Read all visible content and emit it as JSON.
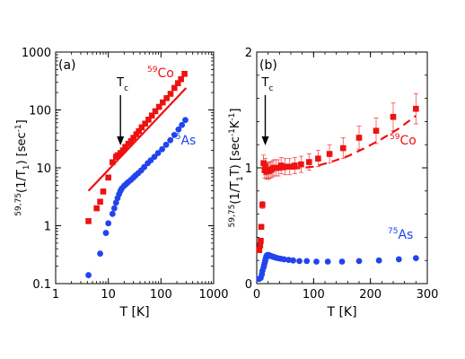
{
  "chart_data": [
    {
      "panel": "(a)",
      "type": "scatter",
      "xscale": "log",
      "yscale": "log",
      "xlim": [
        1,
        1000
      ],
      "ylim": [
        0.1,
        1000
      ],
      "xticks": [
        "1",
        "10",
        "100",
        "1000"
      ],
      "yticks": [
        "0.1",
        "1",
        "10",
        "100",
        "1000"
      ],
      "xlabel": "T [K]",
      "ylabel": "59,75(1/T1) [sec-1]",
      "ylabel_parts": {
        "pre": "59,75",
        "main": "(1/T",
        "sub": "1",
        "mid": ") [sec",
        "sup": "-1",
        "post": "]"
      },
      "annotation": {
        "text": "T",
        "sub": "c",
        "x": 17
      },
      "series": [
        {
          "name": "59Co",
          "label": {
            "sup": "59",
            "text": "Co"
          },
          "color": "#ee1111",
          "marker": "square",
          "x": [
            4.2,
            6,
            7,
            8,
            10,
            12,
            14,
            15,
            17,
            19,
            21,
            24,
            27,
            30,
            34,
            38,
            43,
            50,
            58,
            67,
            78,
            92,
            108,
            128,
            152,
            180,
            210,
            240,
            280
          ],
          "y": [
            1.2,
            2.0,
            2.6,
            3.9,
            6.8,
            12.5,
            15.5,
            16.5,
            18,
            20,
            23,
            26,
            29,
            33,
            38,
            43,
            50,
            58,
            68,
            80,
            95,
            113,
            135,
            160,
            190,
            240,
            290,
            340,
            420
          ]
        },
        {
          "name": "75As",
          "label": {
            "sup": "75",
            "text": "As"
          },
          "color": "#2244ee",
          "marker": "circle",
          "x": [
            4.2,
            7,
            9,
            10,
            12,
            13,
            14,
            15,
            16,
            17,
            18,
            20,
            22,
            24,
            27,
            30,
            33,
            37,
            42,
            48,
            56,
            64,
            75,
            88,
            105,
            125,
            150,
            180,
            215,
            250,
            290
          ],
          "y": [
            0.14,
            0.33,
            0.75,
            1.1,
            1.6,
            2.0,
            2.5,
            3.0,
            3.5,
            4.0,
            4.4,
            4.9,
            5.3,
            5.7,
            6.2,
            6.8,
            7.4,
            8.1,
            9.0,
            10.3,
            12,
            13.5,
            15.5,
            18,
            21,
            25,
            30,
            37,
            46,
            55,
            67
          ]
        },
        {
          "name": "fit",
          "type": "line",
          "color": "#ee1111",
          "x": [
            4.2,
            300
          ],
          "y": [
            4.0,
            240
          ]
        }
      ]
    },
    {
      "panel": "(b)",
      "type": "scatter",
      "xlim": [
        0,
        300
      ],
      "ylim": [
        0,
        2
      ],
      "xticks": [
        "0",
        "100",
        "200",
        "300"
      ],
      "yticks": [
        "0",
        "1",
        "2"
      ],
      "xlabel": "T [K]",
      "ylabel": "59,75(1/T1T) [sec-1K-1]",
      "ylabel_parts": {
        "pre": "59,75",
        "main": "(1/T",
        "sub": "1",
        "mid": "T) [sec",
        "sup": "-1",
        "mid2": "K",
        "sup2": "-1",
        "post": "]"
      },
      "annotation": {
        "text": "T",
        "sub": "c",
        "x": 15
      },
      "series": [
        {
          "name": "59Co",
          "label": {
            "sup": "59",
            "text": "Co"
          },
          "color": "#ee1111",
          "marker": "square",
          "x": [
            4.2,
            6,
            7,
            8,
            10,
            12,
            14,
            15,
            17,
            19,
            21,
            24,
            27,
            30,
            34,
            38,
            43,
            50,
            58,
            67,
            78,
            92,
            108,
            128,
            152,
            180,
            210,
            240,
            280
          ],
          "y": [
            0.29,
            0.33,
            0.37,
            0.49,
            0.68,
            1.04,
            0.98,
            1.01,
            0.97,
            0.98,
            0.97,
            0.98,
            0.99,
            1.0,
            1.0,
            1.0,
            1.02,
            1.01,
            1.01,
            1.02,
            1.03,
            1.05,
            1.08,
            1.12,
            1.17,
            1.26,
            1.32,
            1.44,
            1.51
          ],
          "errors": [
            0.02,
            0.02,
            0.02,
            0.02,
            0.03,
            0.07,
            0.07,
            0.07,
            0.07,
            0.07,
            0.07,
            0.07,
            0.07,
            0.07,
            0.07,
            0.07,
            0.07,
            0.07,
            0.07,
            0.07,
            0.07,
            0.07,
            0.07,
            0.08,
            0.09,
            0.1,
            0.11,
            0.12,
            0.13
          ]
        },
        {
          "name": "75As",
          "label": {
            "sup": "75",
            "text": "As"
          },
          "color": "#2244ee",
          "marker": "circle",
          "x": [
            4.2,
            7,
            9,
            10,
            12,
            13,
            14,
            15,
            16,
            17,
            18,
            20,
            22,
            24,
            27,
            30,
            33,
            37,
            42,
            48,
            56,
            64,
            75,
            88,
            105,
            125,
            150,
            180,
            215,
            250,
            280
          ],
          "y": [
            0.04,
            0.05,
            0.08,
            0.11,
            0.14,
            0.16,
            0.18,
            0.2,
            0.22,
            0.235,
            0.245,
            0.248,
            0.245,
            0.24,
            0.235,
            0.23,
            0.225,
            0.22,
            0.215,
            0.21,
            0.205,
            0.2,
            0.195,
            0.195,
            0.19,
            0.19,
            0.19,
            0.195,
            0.2,
            0.21,
            0.22
          ]
        },
        {
          "name": "fit",
          "type": "line",
          "style": "dashed",
          "color": "#ee1111",
          "x": [
            15,
            40,
            70,
            100,
            130,
            160,
            190,
            220,
            250,
            280
          ],
          "y": [
            0.98,
            0.985,
            0.995,
            1.01,
            1.05,
            1.1,
            1.17,
            1.25,
            1.34,
            1.45
          ]
        }
      ]
    }
  ]
}
